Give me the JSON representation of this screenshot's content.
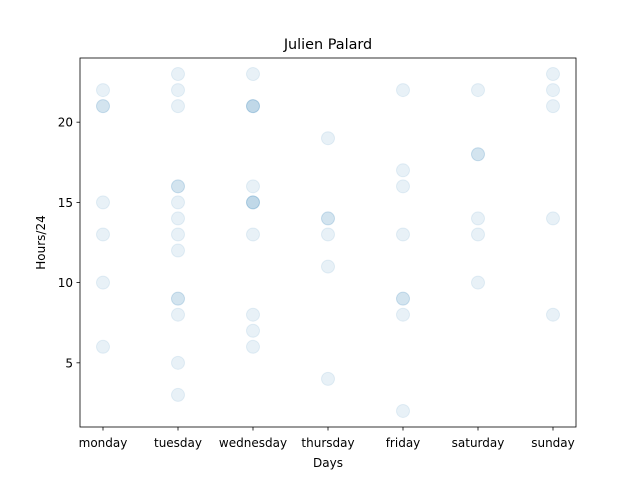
{
  "chart_data": {
    "type": "scatter",
    "title": "Julien Palard",
    "xlabel": "Days",
    "ylabel": "Hours/24",
    "categories": [
      "monday",
      "tuesday",
      "wednesday",
      "thursday",
      "friday",
      "saturday",
      "sunday"
    ],
    "y_ticks": [
      5,
      10,
      15,
      20
    ],
    "ylim": [
      1,
      24
    ],
    "grid": false,
    "marker_color": "#1f77b4",
    "marker_alpha": 0.1,
    "points": [
      {
        "x": "monday",
        "y": 6
      },
      {
        "x": "monday",
        "y": 10
      },
      {
        "x": "monday",
        "y": 13
      },
      {
        "x": "monday",
        "y": 15
      },
      {
        "x": "monday",
        "y": 21
      },
      {
        "x": "monday",
        "y": 21
      },
      {
        "x": "monday",
        "y": 22
      },
      {
        "x": "tuesday",
        "y": 3
      },
      {
        "x": "tuesday",
        "y": 5
      },
      {
        "x": "tuesday",
        "y": 8
      },
      {
        "x": "tuesday",
        "y": 9
      },
      {
        "x": "tuesday",
        "y": 9
      },
      {
        "x": "tuesday",
        "y": 12
      },
      {
        "x": "tuesday",
        "y": 13
      },
      {
        "x": "tuesday",
        "y": 14
      },
      {
        "x": "tuesday",
        "y": 15
      },
      {
        "x": "tuesday",
        "y": 16
      },
      {
        "x": "tuesday",
        "y": 16
      },
      {
        "x": "tuesday",
        "y": 21
      },
      {
        "x": "tuesday",
        "y": 22
      },
      {
        "x": "tuesday",
        "y": 23
      },
      {
        "x": "wednesday",
        "y": 6
      },
      {
        "x": "wednesday",
        "y": 7
      },
      {
        "x": "wednesday",
        "y": 8
      },
      {
        "x": "wednesday",
        "y": 13
      },
      {
        "x": "wednesday",
        "y": 15
      },
      {
        "x": "wednesday",
        "y": 15
      },
      {
        "x": "wednesday",
        "y": 15
      },
      {
        "x": "wednesday",
        "y": 16
      },
      {
        "x": "wednesday",
        "y": 21
      },
      {
        "x": "wednesday",
        "y": 21
      },
      {
        "x": "wednesday",
        "y": 21
      },
      {
        "x": "wednesday",
        "y": 23
      },
      {
        "x": "thursday",
        "y": 4
      },
      {
        "x": "thursday",
        "y": 11
      },
      {
        "x": "thursday",
        "y": 13
      },
      {
        "x": "thursday",
        "y": 14
      },
      {
        "x": "thursday",
        "y": 14
      },
      {
        "x": "thursday",
        "y": 19
      },
      {
        "x": "friday",
        "y": 2
      },
      {
        "x": "friday",
        "y": 8
      },
      {
        "x": "friday",
        "y": 9
      },
      {
        "x": "friday",
        "y": 9
      },
      {
        "x": "friday",
        "y": 13
      },
      {
        "x": "friday",
        "y": 16
      },
      {
        "x": "friday",
        "y": 17
      },
      {
        "x": "friday",
        "y": 22
      },
      {
        "x": "saturday",
        "y": 10
      },
      {
        "x": "saturday",
        "y": 13
      },
      {
        "x": "saturday",
        "y": 14
      },
      {
        "x": "saturday",
        "y": 18
      },
      {
        "x": "saturday",
        "y": 18
      },
      {
        "x": "saturday",
        "y": 22
      },
      {
        "x": "sunday",
        "y": 8
      },
      {
        "x": "sunday",
        "y": 14
      },
      {
        "x": "sunday",
        "y": 21
      },
      {
        "x": "sunday",
        "y": 22
      },
      {
        "x": "sunday",
        "y": 23
      }
    ]
  }
}
